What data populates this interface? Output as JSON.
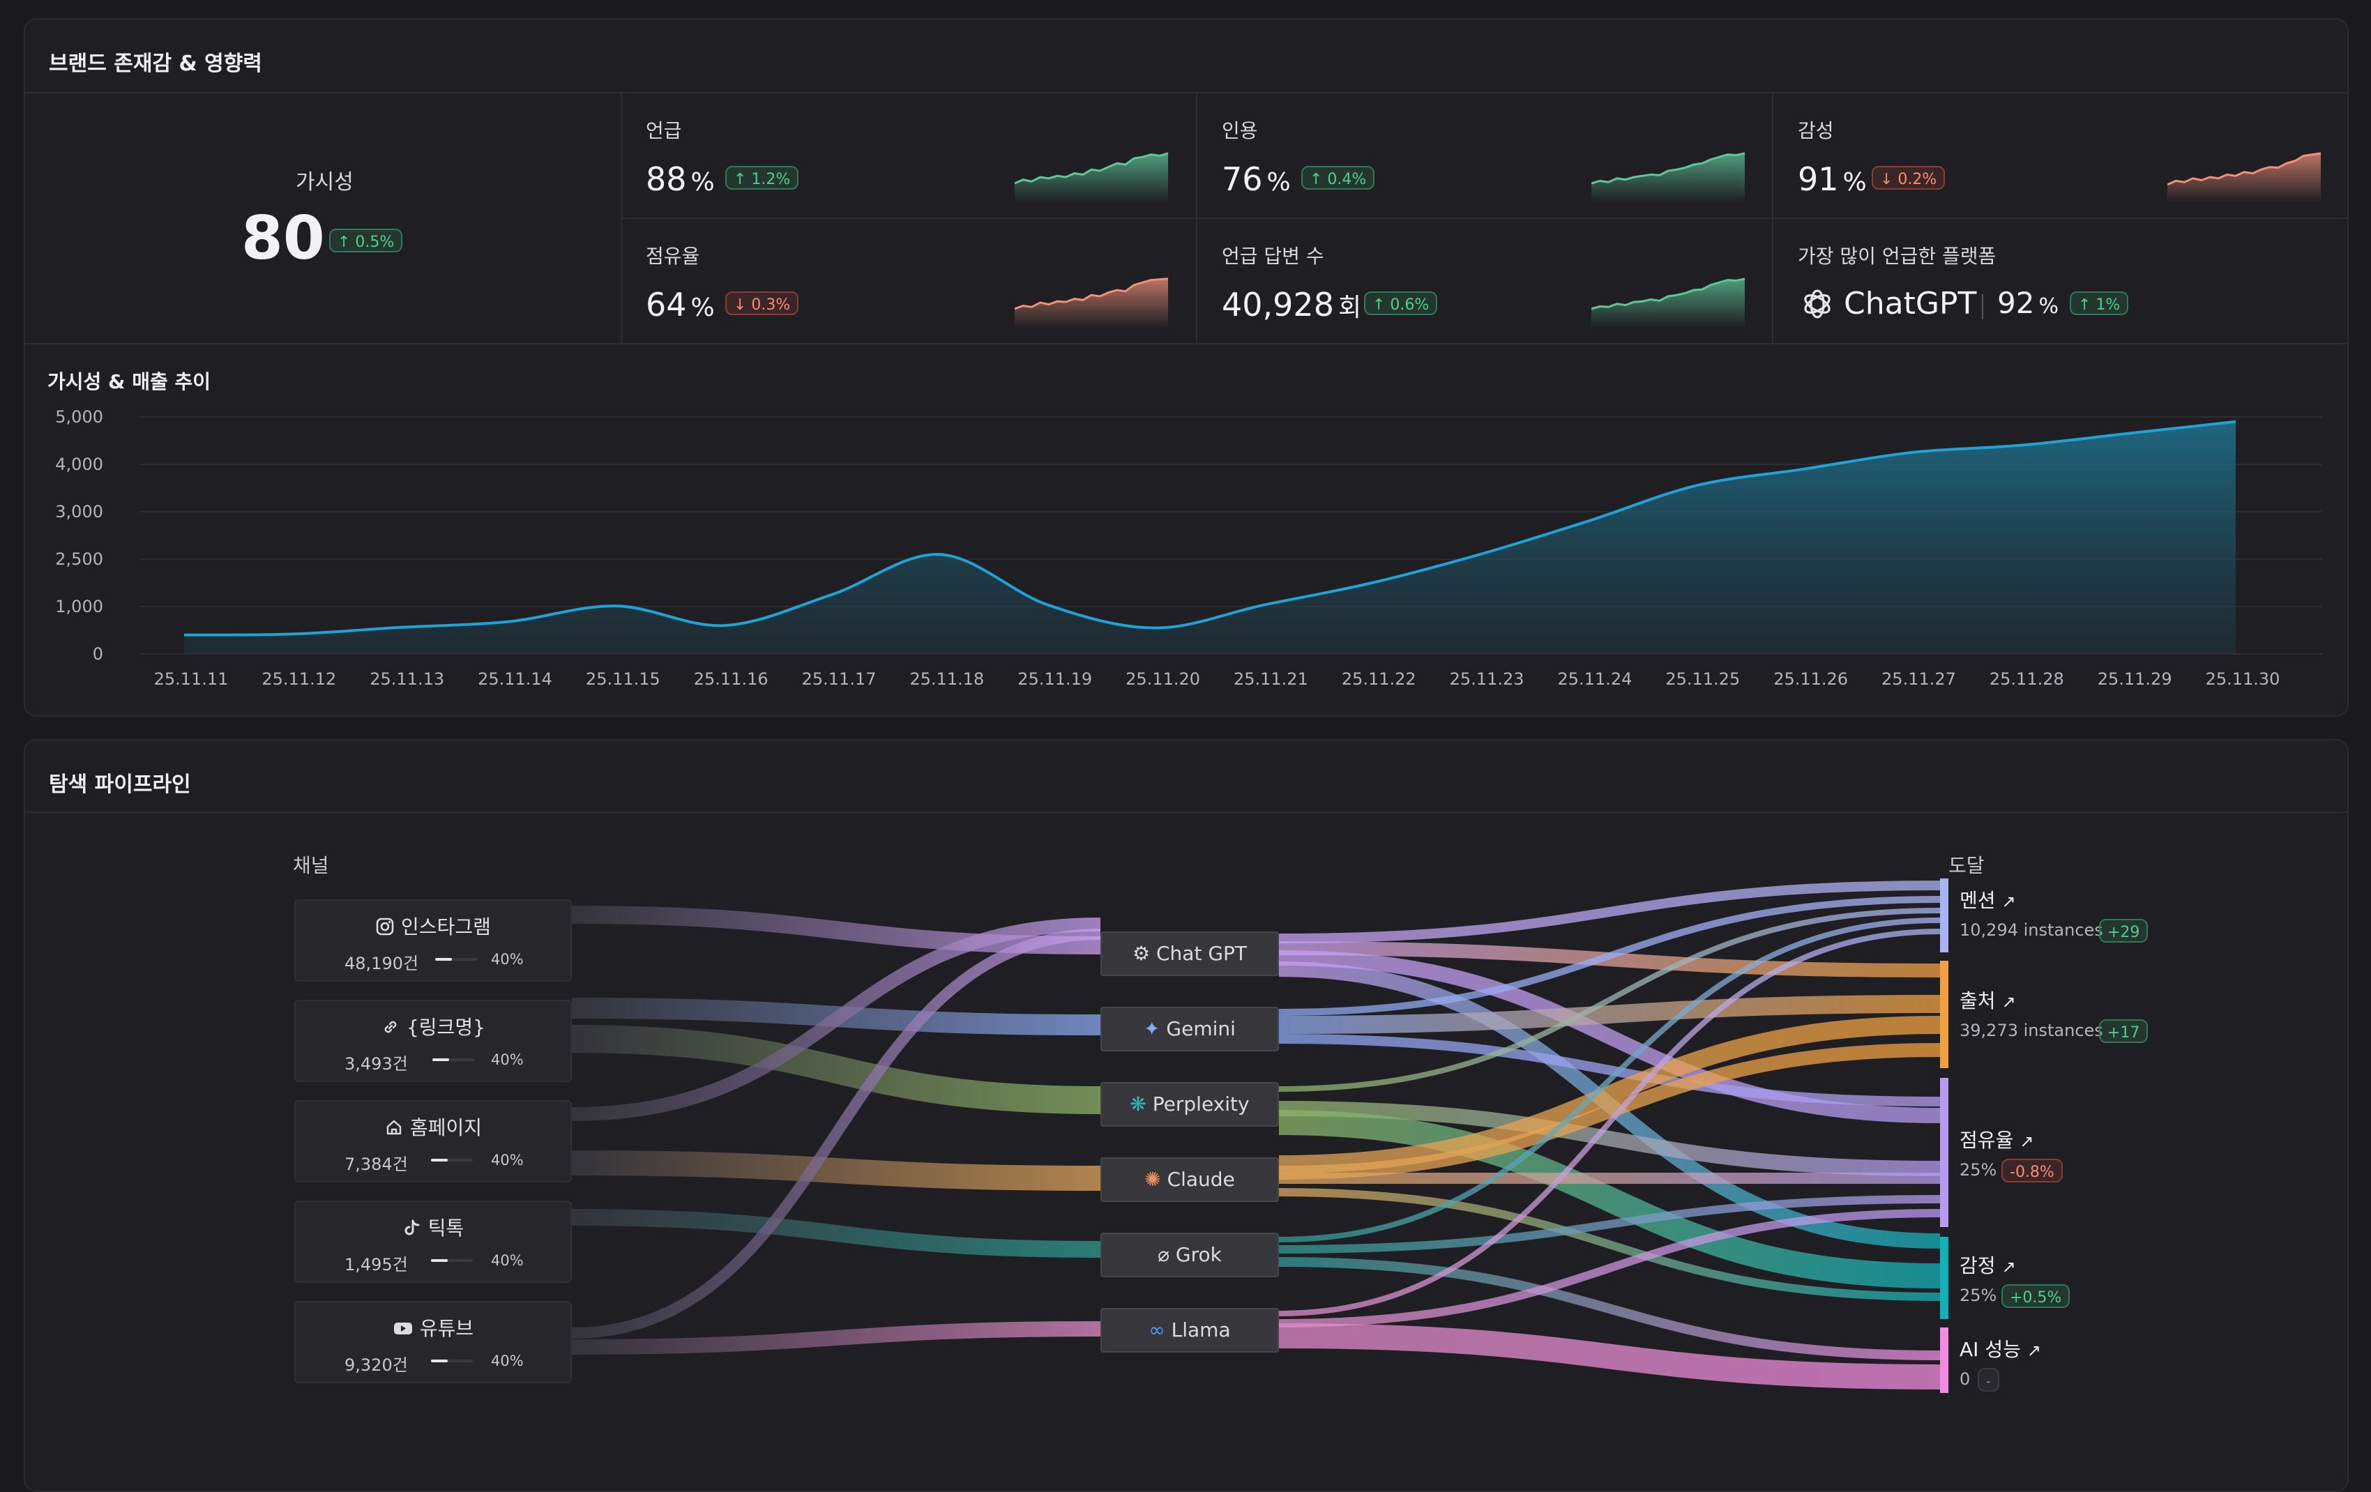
{
  "brand": {
    "title": "브랜드 존재감 & 영향력",
    "visibility": {
      "label": "가시성",
      "value": "80",
      "change": "↑ 0.5%",
      "trend": "up"
    },
    "metrics": [
      {
        "label": "언급",
        "value": "88",
        "unit": "%",
        "change": "↑ 1.2%",
        "trend": "up"
      },
      {
        "label": "인용",
        "value": "76",
        "unit": "%",
        "change": "↑ 0.4%",
        "trend": "up"
      },
      {
        "label": "감성",
        "value": "91",
        "unit": "%",
        "change": "↓ 0.2%",
        "trend": "down"
      },
      {
        "label": "점유율",
        "value": "64",
        "unit": "%",
        "change": "↓ 0.3%",
        "trend": "down"
      },
      {
        "label": "언급 답변 수",
        "value": "40,928",
        "unit": "회",
        "change": "↑ 0.6%",
        "trend": "up"
      }
    ],
    "top_platform": {
      "label": "가장 많이 언급한 플랫폼",
      "name": "ChatGPT",
      "value": "92",
      "unit": "%",
      "change": "↑ 1%",
      "trend": "up"
    },
    "colors": {
      "up": "#4fd08a",
      "down": "#ff8a72",
      "spark_up": "#5ec79a",
      "spark_down": "#f0907a"
    }
  },
  "trend_chart": {
    "title": "가시성 & 매출 추이"
  },
  "chart_data": {
    "type": "area",
    "title": "가시성 & 매출 추이",
    "x": [
      "25.11.11",
      "25.11.12",
      "25.11.13",
      "25.11.14",
      "25.11.15",
      "25.11.16",
      "25.11.17",
      "25.11.18",
      "25.11.19",
      "25.11.20",
      "25.11.21",
      "25.11.22",
      "25.11.23",
      "25.11.24",
      "25.11.25",
      "25.11.26",
      "25.11.27",
      "25.11.28",
      "25.11.29",
      "25.11.30"
    ],
    "y_ticks": [
      0,
      1000,
      2500,
      3000,
      4000,
      5000
    ],
    "y_tick_labels": [
      "0",
      "1,000",
      "2,500",
      "3,000",
      "4,000",
      "5,000"
    ],
    "values": [
      400,
      420,
      560,
      680,
      1020,
      600,
      1380,
      2550,
      1050,
      550,
      1050,
      1750,
      2550,
      2900,
      3550,
      3900,
      4250,
      4400,
      4650,
      4900
    ],
    "color": "#1fa3d4",
    "grid": true,
    "legend": "none"
  },
  "pipeline": {
    "title": "탐색 파이프라인",
    "channels_header": "채널",
    "dest_header": "도달",
    "channels": [
      {
        "name": "인스타그램",
        "icon": "instagram-icon",
        "count": "48,190건",
        "pct": "40%",
        "share": 0.4
      },
      {
        "name": "{링크명}",
        "icon": "link-icon",
        "count": "3,493건",
        "pct": "40%",
        "share": 0.4
      },
      {
        "name": "홈페이지",
        "icon": "home-icon",
        "count": "7,384건",
        "pct": "40%",
        "share": 0.4
      },
      {
        "name": "틱톡",
        "icon": "tiktok-icon",
        "count": "1,495건",
        "pct": "40%",
        "share": 0.4
      },
      {
        "name": "유튜브",
        "icon": "youtube-icon",
        "count": "9,320건",
        "pct": "40%",
        "share": 0.4
      }
    ],
    "llms": [
      {
        "name": "Chat GPT",
        "icon": "chatgpt-icon",
        "color": "#c9a0f2"
      },
      {
        "name": "Gemini",
        "icon": "gemini-icon",
        "color": "#8aa8f0"
      },
      {
        "name": "Perplexity",
        "icon": "perplexity-icon",
        "color": "#8fb468"
      },
      {
        "name": "Claude",
        "icon": "claude-icon",
        "color": "#e0a55a"
      },
      {
        "name": "Grok",
        "icon": "grok-icon",
        "color": "#2f9c92"
      },
      {
        "name": "Llama",
        "icon": "llama-icon",
        "color": "#e08cc8"
      }
    ],
    "destinations": [
      {
        "name": "멘션",
        "sub": "10,294 instances",
        "change": "+29",
        "trend": "up",
        "color": "#a9b4f5"
      },
      {
        "name": "출처",
        "sub": "39,273 instances",
        "change": "+17",
        "trend": "up",
        "color": "#f0a040"
      },
      {
        "name": "점유율",
        "sub": "25%",
        "change": "-0.8%",
        "trend": "down",
        "color": "#b49cf0"
      },
      {
        "name": "감정",
        "sub": "25%",
        "change": "+0.5%",
        "trend": "up",
        "color": "#14b0b8"
      },
      {
        "name": "AI 성능",
        "sub": "0",
        "change": "-",
        "trend": "neutral",
        "color": "#f08ce0"
      }
    ]
  }
}
